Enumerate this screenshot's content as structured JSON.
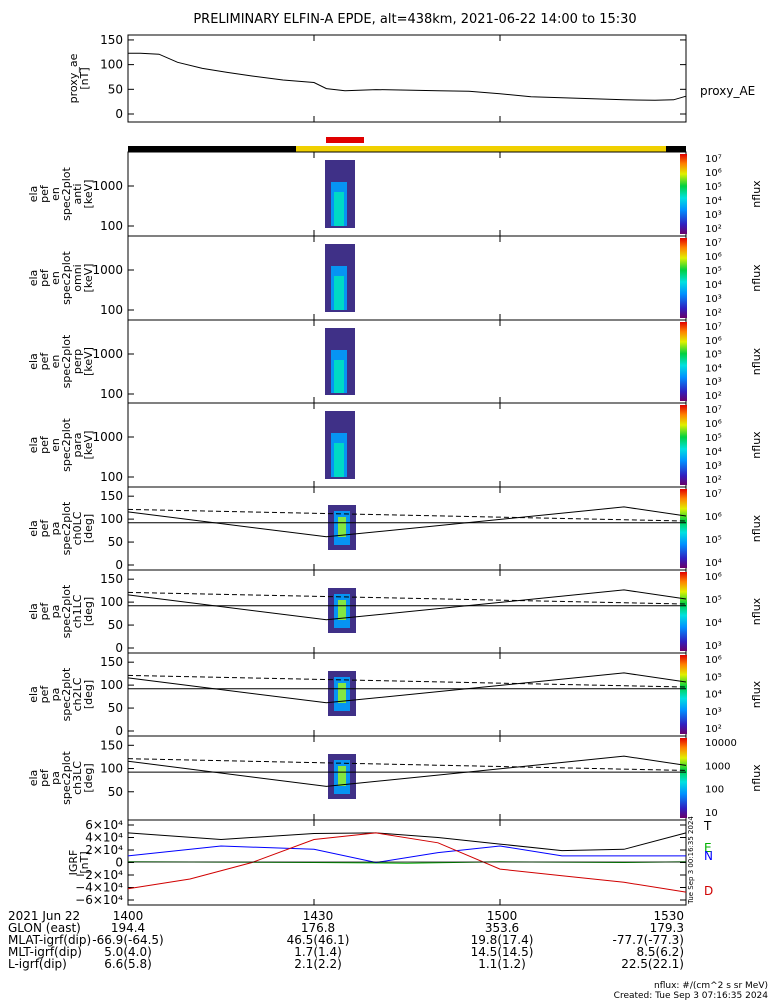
{
  "title": "PRELIMINARY ELFIN-A EPDE, alt=438km, 2021-06-22 14:00 to 15:30",
  "chart_data": {
    "type": "line",
    "x_range": [
      "14:00",
      "15:30"
    ],
    "panels": [
      {
        "id": "proxy_ae",
        "ylabel": [
          "proxy_ae",
          "[nT]"
        ],
        "yticks": [
          "150",
          "100",
          "50",
          "0"
        ],
        "ylim": [
          0,
          160
        ],
        "series": [
          {
            "name": "proxy_AE",
            "x": [
              0,
              2,
              5,
              8,
              12,
              16,
              20,
              25,
              30,
              32,
              35,
              40,
              45,
              50,
              55,
              60,
              65,
              70,
              75,
              80,
              85,
              88,
              90
            ],
            "values": [
              130,
              130,
              128,
              112,
              100,
              92,
              85,
              77,
              72,
              60,
              56,
              58,
              57,
              56,
              55,
              50,
              44,
              42,
              40,
              38,
              37,
              38,
              45
            ]
          }
        ]
      },
      {
        "id": "en_anti",
        "ylabel": [
          "ela",
          "pef",
          "en",
          "spec2plot",
          "anti",
          "[keV]"
        ],
        "yticks": [
          "1000",
          "100"
        ],
        "cbar": [
          "10⁷",
          "10⁶",
          "10⁵",
          "10⁴",
          "10³",
          "10²"
        ],
        "cbar_label": "nflux"
      },
      {
        "id": "en_omni",
        "ylabel": [
          "ela",
          "pef",
          "en",
          "spec2plot",
          "omni",
          "[keV]"
        ],
        "yticks": [
          "1000",
          "100"
        ],
        "cbar": [
          "10⁷",
          "10⁶",
          "10⁵",
          "10⁴",
          "10³",
          "10²"
        ],
        "cbar_label": "nflux"
      },
      {
        "id": "en_perp",
        "ylabel": [
          "ela",
          "pef",
          "en",
          "spec2plot",
          "perp",
          "[keV]"
        ],
        "yticks": [
          "1000",
          "100"
        ],
        "cbar": [
          "10⁷",
          "10⁶",
          "10⁵",
          "10⁴",
          "10³",
          "10²"
        ],
        "cbar_label": "nflux"
      },
      {
        "id": "en_para",
        "ylabel": [
          "ela",
          "pef",
          "en",
          "spec2plot",
          "para",
          "[keV]"
        ],
        "yticks": [
          "1000",
          "100"
        ],
        "cbar": [
          "10⁷",
          "10⁶",
          "10⁵",
          "10⁴",
          "10³",
          "10²"
        ],
        "cbar_label": "nflux"
      },
      {
        "id": "pa_ch0",
        "ylabel": [
          "ela",
          "pef",
          "pa",
          "spec2plot",
          "ch0LC",
          "[deg]"
        ],
        "yticks": [
          "150",
          "100",
          "50",
          "0"
        ],
        "cbar": [
          "10⁷",
          "10⁶",
          "10⁵",
          "10⁴"
        ],
        "cbar_label": "nflux"
      },
      {
        "id": "pa_ch1",
        "ylabel": [
          "ela",
          "pef",
          "pa",
          "spec2plot",
          "ch1LC",
          "[deg]"
        ],
        "yticks": [
          "150",
          "100",
          "50",
          "0"
        ],
        "cbar": [
          "10⁶",
          "10⁵",
          "10⁴",
          "10³"
        ],
        "cbar_label": "nflux"
      },
      {
        "id": "pa_ch2",
        "ylabel": [
          "ela",
          "pef",
          "pa",
          "spec2plot",
          "ch2LC",
          "[deg]"
        ],
        "yticks": [
          "150",
          "100",
          "50",
          "0"
        ],
        "cbar": [
          "10⁶",
          "10⁵",
          "10⁴",
          "10³",
          "10²"
        ],
        "cbar_label": "nflux"
      },
      {
        "id": "pa_ch3",
        "ylabel": [
          "ela",
          "pef",
          "pa",
          "spec2plot",
          "ch3LC",
          "[deg]"
        ],
        "yticks": [
          "150",
          "100",
          "50"
        ],
        "cbar": [
          "10000",
          "1000",
          "100",
          "10"
        ],
        "cbar_label": "nflux"
      },
      {
        "id": "igrf",
        "ylabel": [
          "IGRF",
          "[nT]"
        ],
        "yticks": [
          "6×10⁴",
          "4×10⁴",
          "2×10⁴",
          "0",
          "−2×10⁴",
          "−4×10⁴",
          "−6×10⁴"
        ],
        "ylim": [
          -60000,
          60000
        ],
        "series": [
          {
            "name": "T",
            "color": "#000000",
            "x": [
              0,
              15,
              30,
              40,
              50,
              60,
              70,
              80,
              90
            ],
            "values": [
              45000,
              35000,
              44000,
              45000,
              38000,
              28000,
              18000,
              20000,
              45000
            ]
          },
          {
            "name": "E",
            "color": "#00b000",
            "x": [
              0,
              30,
              45,
              60,
              80,
              90
            ],
            "values": [
              1000,
              0,
              -1000,
              1000,
              0,
              1000
            ]
          },
          {
            "name": "N",
            "color": "#0000ff",
            "x": [
              0,
              15,
              30,
              40,
              50,
              60,
              70,
              80,
              90
            ],
            "values": [
              10000,
              25000,
              20000,
              0,
              15000,
              25000,
              10000,
              10000,
              10000
            ]
          },
          {
            "name": "D",
            "color": "#d00000",
            "x": [
              0,
              10,
              20,
              30,
              40,
              50,
              60,
              70,
              80,
              90
            ],
            "values": [
              -40000,
              -25000,
              0,
              35000,
              45000,
              30000,
              -10000,
              -20000,
              -30000,
              -45000
            ]
          }
        ]
      }
    ],
    "xaxis_rows": [
      {
        "label": "2021 Jun 22",
        "values": [
          "1400",
          "1430",
          "1500",
          "1530"
        ]
      },
      {
        "label": "GLON (east)",
        "values": [
          "194.4",
          "176.8",
          "353.6",
          "179.3"
        ]
      },
      {
        "label": "MLAT-igrf(dip)",
        "values": [
          "-66.9(-64.5)",
          "46.5(46.1)",
          "19.8(17.4)",
          "-77.7(-77.3)"
        ]
      },
      {
        "label": "MLT-igrf(dip)",
        "values": [
          "5.0(4.0)",
          "1.7(1.4)",
          "14.5(14.5)",
          "8.5(6.2)"
        ]
      },
      {
        "label": "L-igrf(dip)",
        "values": [
          "6.6(5.8)",
          "2.1(2.2)",
          "1.1(1.2)",
          "22.5(22.1)"
        ]
      }
    ],
    "footer": [
      "nflux: #/(cm^2 s sr MeV)",
      "Created: Tue Sep  3 07:16:35 2024"
    ],
    "side_stamp": "Tue Sep  3 00:16:35 2024"
  }
}
